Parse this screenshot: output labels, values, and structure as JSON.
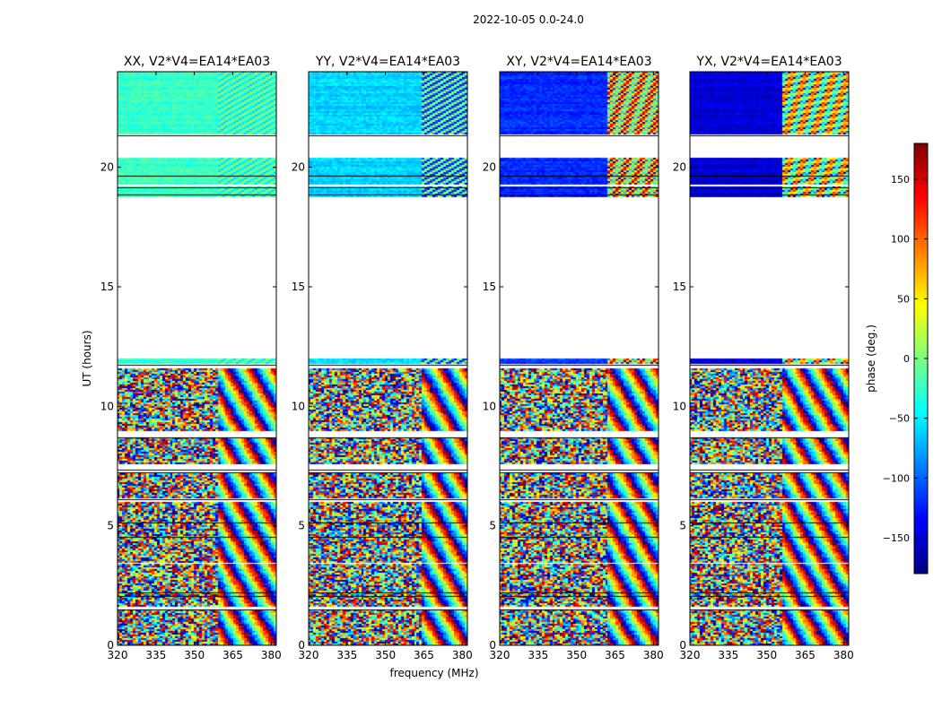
{
  "figure": {
    "suptitle": "2022-10-05 0.0-24.0"
  },
  "chart_data": {
    "type": "heatmap",
    "title": "2022-10-05 0.0-24.0",
    "xlabel": "frequency (MHz)",
    "ylabel": "UT (hours)",
    "xlim": [
      320,
      382
    ],
    "ylim": [
      0,
      24
    ],
    "xticks": [
      320,
      335,
      350,
      365,
      380
    ],
    "yticks": [
      0,
      5,
      10,
      15,
      20
    ],
    "panels": [
      {
        "title": "XX, V2*V4=EA14*EA03",
        "base_phase": -25,
        "band_shift_freq": 359,
        "band_shift_phase": 12,
        "seed": 11
      },
      {
        "title": "YY, V2*V4=EA14*EA03",
        "base_phase": -60,
        "band_shift_freq": 364,
        "band_shift_phase": 30,
        "seed": 23
      },
      {
        "title": "XY, V2*V4=EA14*EA03",
        "base_phase": -120,
        "band_shift_freq": 362,
        "band_shift_phase": 60,
        "seed": 37
      },
      {
        "title": "YX, V2*V4=EA14*EA03",
        "base_phase": -150,
        "band_shift_freq": 356,
        "band_shift_phase": 80,
        "seed": 53
      }
    ],
    "data_segments_ut": [
      {
        "start": 0.0,
        "end": 1.5,
        "pattern": "noisy"
      },
      {
        "start": 1.6,
        "end": 3.4,
        "pattern": "noisy"
      },
      {
        "start": 3.5,
        "end": 6.0,
        "pattern": "noisy"
      },
      {
        "start": 6.2,
        "end": 7.2,
        "pattern": "noisy"
      },
      {
        "start": 7.6,
        "end": 8.7,
        "pattern": "noisy"
      },
      {
        "start": 9.0,
        "end": 11.6,
        "pattern": "noisy"
      },
      {
        "start": 11.8,
        "end": 12.0,
        "pattern": "flat"
      },
      {
        "start": 18.8,
        "end": 19.2,
        "pattern": "flat"
      },
      {
        "start": 19.3,
        "end": 20.4,
        "pattern": "flat"
      },
      {
        "start": 21.4,
        "end": 24.0,
        "pattern": "flat"
      }
    ],
    "gap_lines_ut": [
      1.5,
      2.05,
      2.2,
      4.55,
      5.15,
      6.1,
      7.25,
      7.35,
      8.7,
      11.75,
      18.85,
      19.15,
      19.65,
      21.35
    ],
    "colorbar": {
      "label": "phase (deg.)",
      "range": [
        -180,
        180
      ],
      "ticks": [
        -150,
        -100,
        -50,
        0,
        50,
        100,
        150
      ],
      "tick_labels": [
        "−150",
        "−100",
        "−50",
        "0",
        "50",
        "100",
        "150"
      ],
      "colormap": "jet",
      "colormap_stops": [
        "#00007f",
        "#0000ff",
        "#007fff",
        "#00ffff",
        "#7fff7f",
        "#ffff00",
        "#ff7f00",
        "#ff0000",
        "#7f0000"
      ]
    }
  }
}
